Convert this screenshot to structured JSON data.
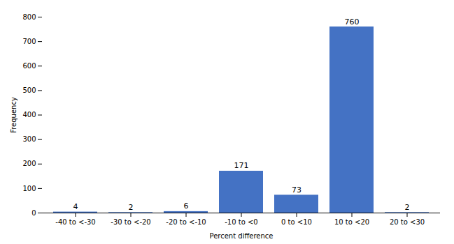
{
  "chart_data": {
    "type": "bar",
    "categories": [
      "-40 to <-30",
      "-30 to <-20",
      "-20 to <-10",
      "-10 to <0",
      "0 to <10",
      "10 to <20",
      "20 to <30"
    ],
    "values": [
      4,
      2,
      6,
      171,
      73,
      760,
      2
    ],
    "color": "#4472C4",
    "xlabel": "Percent difference",
    "ylabel": "Frequency",
    "ylim": [
      0,
      800
    ],
    "yticks": [
      0,
      100,
      200,
      300,
      400,
      500,
      600,
      700,
      800
    ],
    "grid": false,
    "data_labels": true
  }
}
